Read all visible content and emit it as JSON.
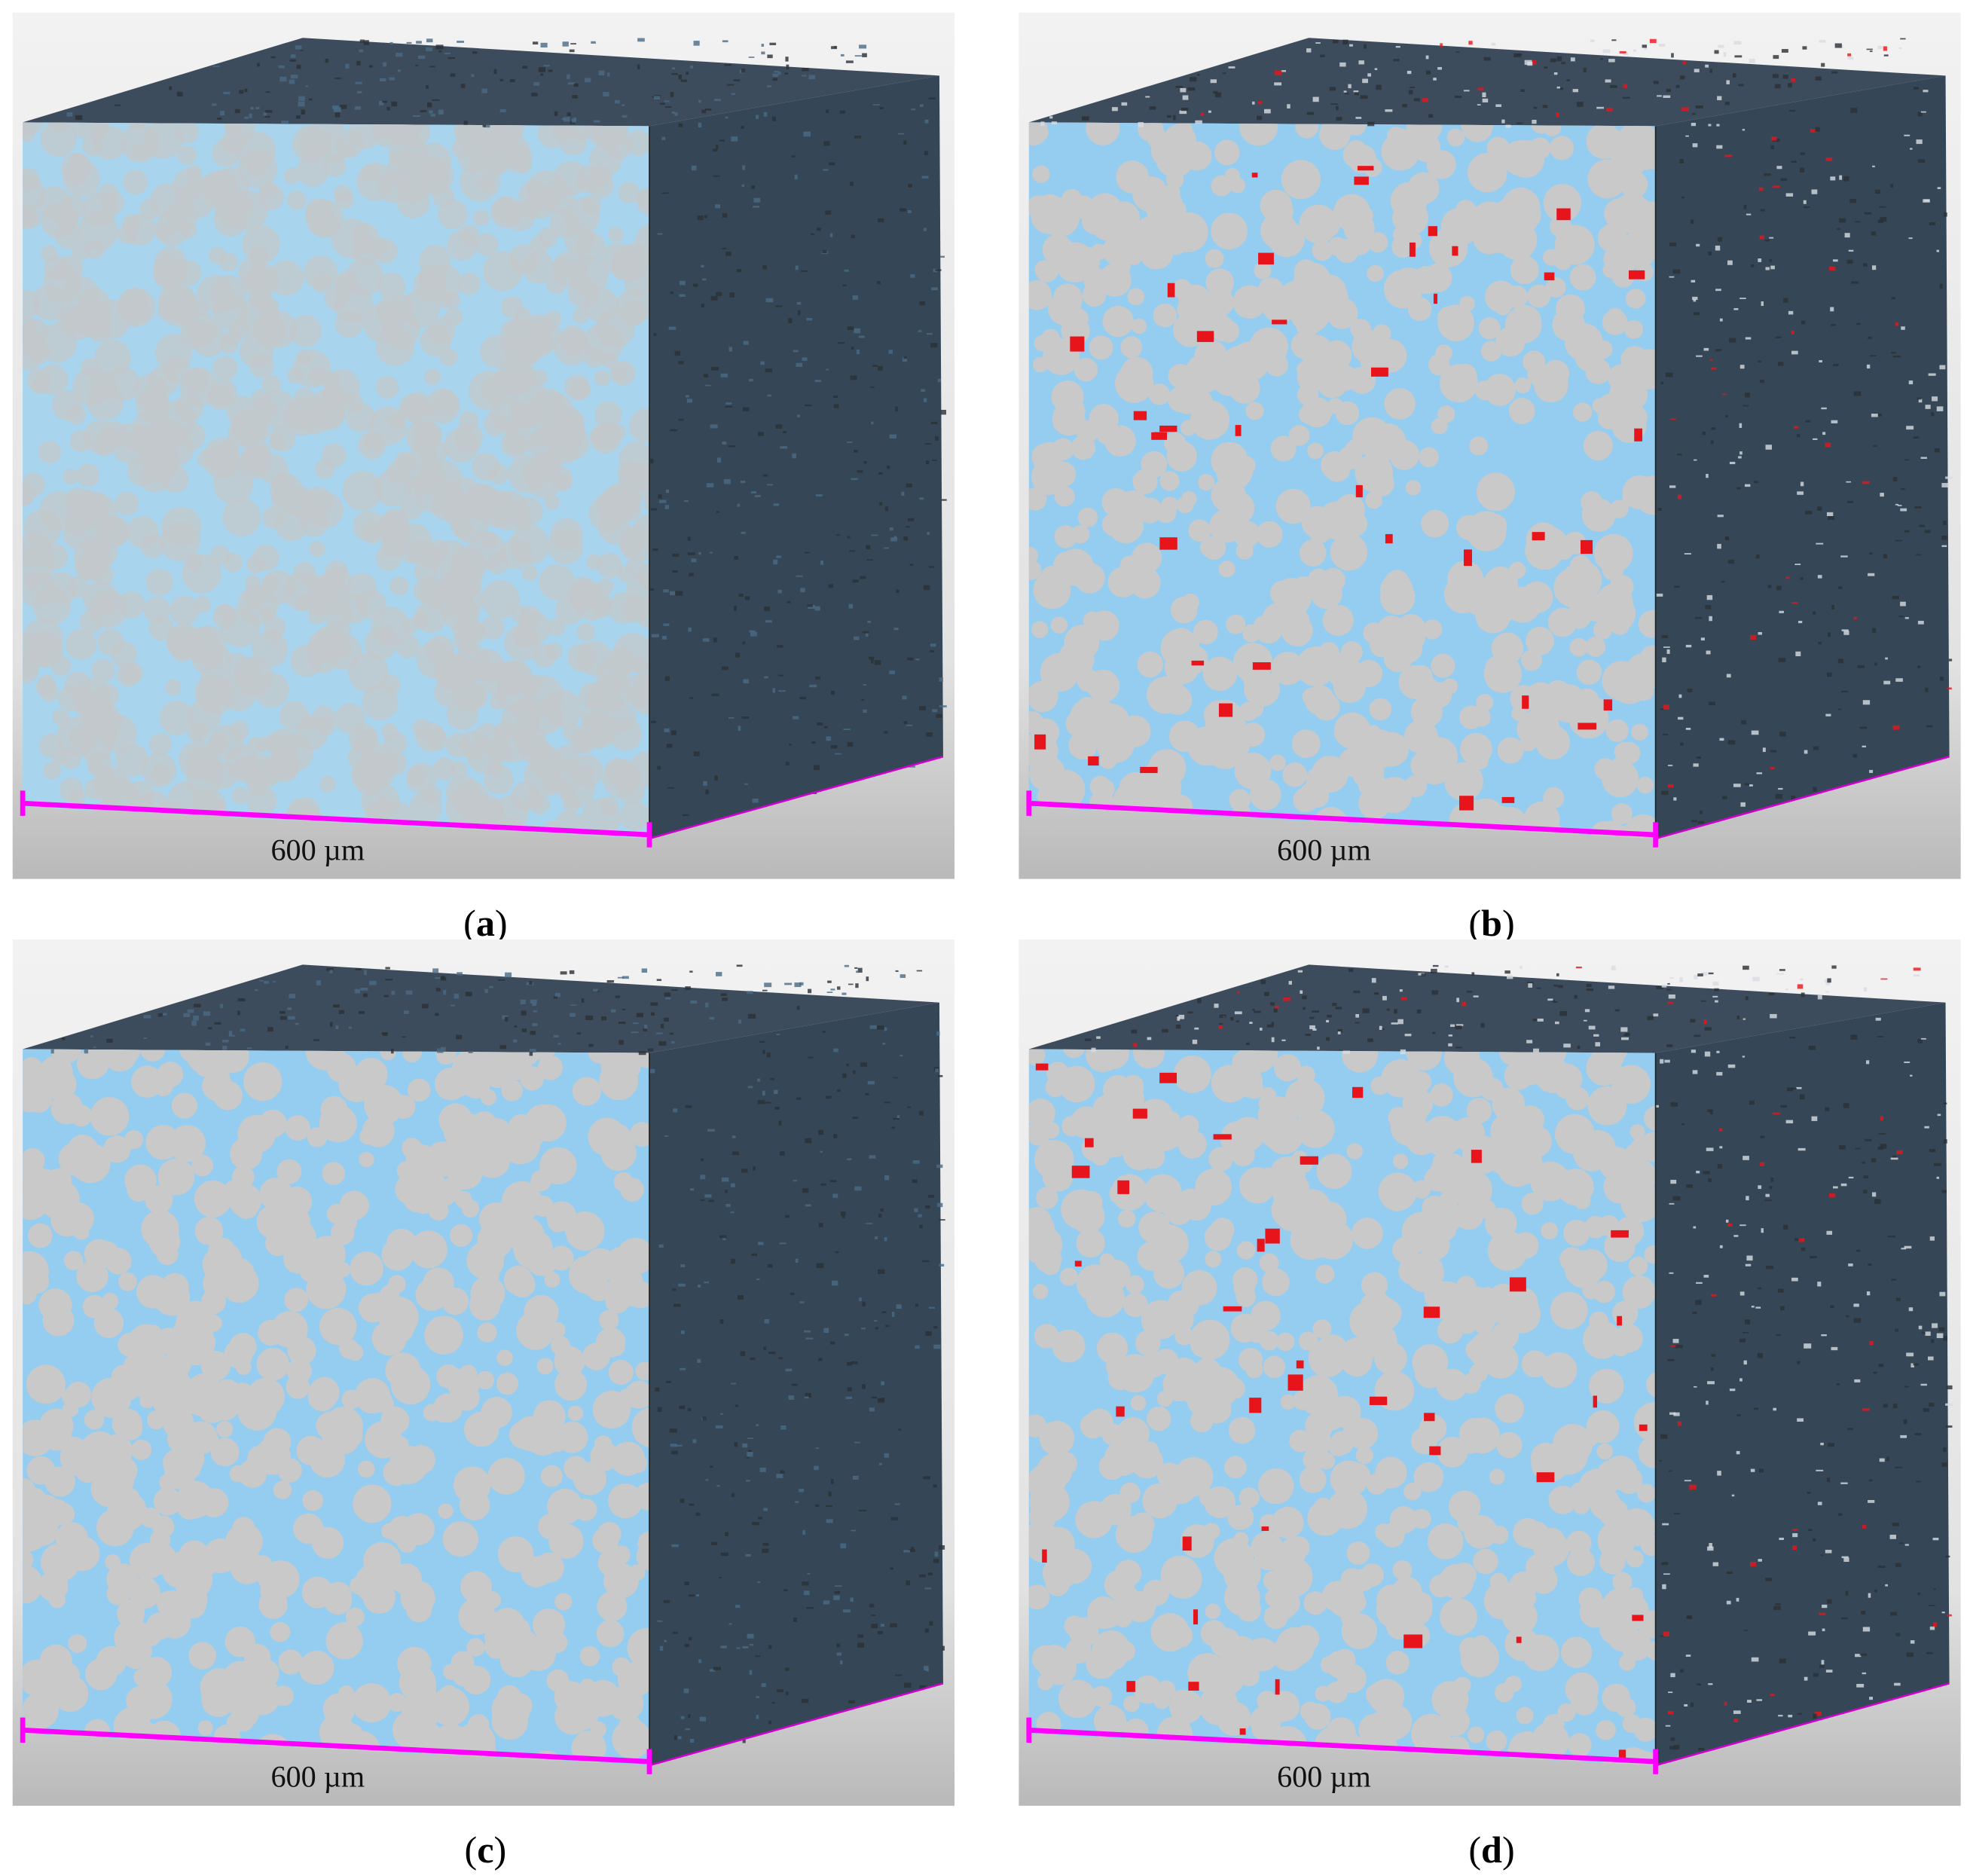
{
  "panels": [
    {
      "prefix": "(",
      "letter": "a",
      "suffix": ")",
      "scale": "600 µm"
    },
    {
      "prefix": "(",
      "letter": "b",
      "suffix": ")",
      "scale": "600 µm"
    },
    {
      "prefix": "(",
      "letter": "c",
      "suffix": ")",
      "scale": "600 µm"
    },
    {
      "prefix": "(",
      "letter": "d",
      "suffix": ")",
      "scale": "600 µm"
    }
  ]
}
